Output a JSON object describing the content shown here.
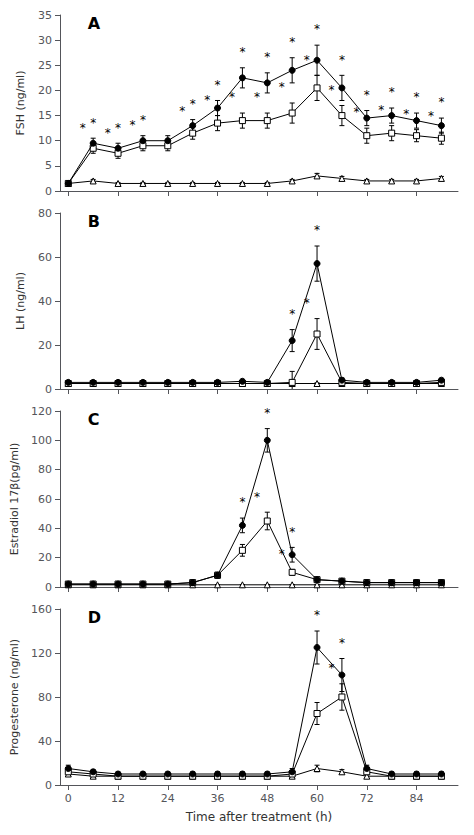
{
  "chart_data": [
    {
      "type": "line",
      "title": "A",
      "ylabel": "FSH (ng/ml)",
      "x": [
        0,
        6,
        12,
        18,
        24,
        30,
        36,
        42,
        48,
        54,
        60,
        66,
        72,
        78,
        84,
        90
      ],
      "xlim": [
        -2,
        94
      ],
      "xticks": [
        0,
        12,
        24,
        36,
        48,
        60,
        72,
        84
      ],
      "ylim": [
        0,
        35
      ],
      "yticks": [
        0,
        5,
        10,
        15,
        20,
        25,
        30,
        35
      ],
      "grid": false,
      "tick_labels": "y",
      "series": [
        {
          "marker": "triangle_open",
          "color": "#000000",
          "values": [
            1.5,
            2.0,
            1.5,
            1.5,
            1.5,
            1.5,
            1.5,
            1.5,
            1.5,
            2.0,
            3.0,
            2.5,
            2.0,
            2.0,
            2.0,
            2.5
          ],
          "errors": [
            0.2,
            0.3,
            0.2,
            0.2,
            0.2,
            0.2,
            0.2,
            0.2,
            0.2,
            0.3,
            0.5,
            0.4,
            0.3,
            0.3,
            0.3,
            0.4
          ]
        },
        {
          "marker": "square_open",
          "color": "#000000",
          "values": [
            1.5,
            8.5,
            7.5,
            9.0,
            9.0,
            11.5,
            13.5,
            14.0,
            14.0,
            15.5,
            20.5,
            15.0,
            11.0,
            11.5,
            11.0,
            10.5
          ],
          "errors": [
            0.3,
            1.0,
            1.0,
            1.0,
            1.0,
            1.2,
            1.5,
            1.5,
            1.5,
            2.0,
            2.5,
            2.0,
            1.5,
            1.5,
            1.2,
            1.2
          ],
          "annotations": [
            {
              "x": 6,
              "text": "*"
            },
            {
              "x": 12,
              "text": "*"
            },
            {
              "x": 18,
              "text": "*"
            },
            {
              "x": 30,
              "text": "*"
            },
            {
              "x": 36,
              "text": "*"
            },
            {
              "x": 42,
              "text": "*"
            },
            {
              "x": 48,
              "text": "*"
            },
            {
              "x": 54,
              "text": "*"
            },
            {
              "x": 60,
              "text": "*"
            },
            {
              "x": 66,
              "text": "*"
            },
            {
              "x": 72,
              "text": "*"
            },
            {
              "x": 78,
              "text": "*"
            },
            {
              "x": 84,
              "text": "*"
            },
            {
              "x": 90,
              "text": "*"
            }
          ]
        },
        {
          "marker": "circle",
          "color": "#000000",
          "values": [
            1.5,
            9.5,
            8.5,
            10.0,
            10.0,
            13.0,
            16.5,
            22.5,
            21.5,
            24.0,
            26.0,
            20.5,
            14.5,
            15.0,
            14.0,
            13.0
          ],
          "errors": [
            0.3,
            1.0,
            1.0,
            1.0,
            1.0,
            1.2,
            1.5,
            2.0,
            2.0,
            2.5,
            3.0,
            2.5,
            1.5,
            1.5,
            1.5,
            1.5
          ],
          "annotations": [
            {
              "x": 6,
              "text": "*"
            },
            {
              "x": 12,
              "text": "*"
            },
            {
              "x": 18,
              "text": "*"
            },
            {
              "x": 30,
              "text": "*"
            },
            {
              "x": 36,
              "text": "*"
            },
            {
              "x": 42,
              "text": "*"
            },
            {
              "x": 48,
              "text": "*"
            },
            {
              "x": 54,
              "text": "*"
            },
            {
              "x": 60,
              "text": "*"
            },
            {
              "x": 66,
              "text": "*"
            },
            {
              "x": 72,
              "text": "*"
            },
            {
              "x": 78,
              "text": "*"
            },
            {
              "x": 84,
              "text": "*"
            },
            {
              "x": 90,
              "text": "*"
            }
          ]
        }
      ]
    },
    {
      "type": "line",
      "title": "B",
      "ylabel": "LH (ng/ml)",
      "x": [
        0,
        6,
        12,
        18,
        24,
        30,
        36,
        42,
        48,
        54,
        60,
        66,
        72,
        78,
        84,
        90
      ],
      "xlim": [
        -2,
        94
      ],
      "xticks": [
        0,
        12,
        24,
        36,
        48,
        60,
        72,
        84
      ],
      "ylim": [
        0,
        80
      ],
      "yticks": [
        0,
        20,
        40,
        60,
        80
      ],
      "grid": false,
      "tick_labels": "y",
      "series": [
        {
          "marker": "triangle_open",
          "color": "#000000",
          "values": [
            2.5,
            2.5,
            2.5,
            2.5,
            2.5,
            2.5,
            2.5,
            2.5,
            2.5,
            2.5,
            2.5,
            2.5,
            2.5,
            2.5,
            2.5,
            2.5
          ],
          "errors": [
            0.3,
            0.3,
            0.3,
            0.3,
            0.3,
            0.3,
            0.3,
            0.3,
            0.3,
            0.3,
            0.3,
            0.3,
            0.3,
            0.3,
            0.3,
            0.3
          ]
        },
        {
          "marker": "square_open",
          "color": "#000000",
          "values": [
            2.5,
            2.5,
            2.5,
            2.5,
            2.5,
            2.5,
            2.5,
            2.5,
            2.5,
            3.0,
            25.0,
            3.0,
            2.5,
            2.5,
            2.5,
            3.0
          ],
          "errors": [
            0.5,
            0.5,
            0.5,
            0.5,
            0.5,
            0.5,
            0.5,
            0.5,
            0.5,
            5.0,
            7.0,
            1.0,
            0.5,
            0.5,
            0.5,
            0.5
          ],
          "annotations": [
            {
              "x": 60,
              "text": "*"
            }
          ]
        },
        {
          "marker": "circle",
          "color": "#000000",
          "values": [
            3.0,
            3.0,
            3.0,
            3.0,
            3.0,
            3.0,
            3.0,
            3.5,
            3.0,
            22.0,
            57.0,
            4.0,
            3.0,
            3.0,
            3.0,
            4.0
          ],
          "errors": [
            0.5,
            0.5,
            0.5,
            0.5,
            0.5,
            0.5,
            0.5,
            0.5,
            0.5,
            5.0,
            8.0,
            1.0,
            0.5,
            0.5,
            0.5,
            0.5
          ],
          "annotations": [
            {
              "x": 54,
              "text": "*"
            },
            {
              "x": 60,
              "text": "*"
            }
          ]
        }
      ]
    },
    {
      "type": "line",
      "title": "C",
      "ylabel": "Estradiol 17β(pg/ml)",
      "x": [
        0,
        6,
        12,
        18,
        24,
        30,
        36,
        42,
        48,
        54,
        60,
        66,
        72,
        78,
        84,
        90
      ],
      "xlim": [
        -2,
        94
      ],
      "xticks": [
        0,
        12,
        24,
        36,
        48,
        60,
        72,
        84
      ],
      "ylim": [
        0,
        120
      ],
      "yticks": [
        0,
        20,
        40,
        60,
        80,
        100,
        120
      ],
      "grid": false,
      "tick_labels": "y",
      "series": [
        {
          "marker": "triangle_open",
          "color": "#000000",
          "values": [
            1.5,
            1.5,
            1.5,
            1.5,
            1.5,
            1.5,
            1.5,
            1.5,
            1.5,
            1.5,
            1.5,
            1.5,
            1.5,
            1.5,
            1.5,
            1.5
          ],
          "errors": [
            0.2,
            0.2,
            0.2,
            0.2,
            0.2,
            0.2,
            0.2,
            0.2,
            0.2,
            0.2,
            0.2,
            0.2,
            0.2,
            0.2,
            0.2,
            0.2
          ]
        },
        {
          "marker": "square_open",
          "color": "#000000",
          "values": [
            2.0,
            2.0,
            2.0,
            2.0,
            2.0,
            3.0,
            8.0,
            25.0,
            45.0,
            10.0,
            5.0,
            4.0,
            3.0,
            3.0,
            3.0,
            3.0
          ],
          "errors": [
            0.5,
            0.5,
            0.5,
            0.5,
            0.5,
            0.5,
            2.0,
            4.0,
            6.0,
            2.0,
            1.0,
            0.5,
            0.5,
            0.5,
            0.5,
            0.5
          ],
          "annotations": [
            {
              "x": 48,
              "text": "*"
            },
            {
              "x": 54,
              "text": "*"
            }
          ]
        },
        {
          "marker": "circle",
          "color": "#000000",
          "values": [
            2.0,
            2.0,
            2.0,
            2.0,
            2.0,
            3.0,
            8.0,
            42.0,
            100.0,
            22.0,
            5.0,
            4.0,
            3.0,
            3.0,
            3.0,
            3.0
          ],
          "errors": [
            0.5,
            0.5,
            0.5,
            0.5,
            0.5,
            0.5,
            2.0,
            5.0,
            8.0,
            5.0,
            1.0,
            0.5,
            0.5,
            0.5,
            0.5,
            0.5
          ],
          "annotations": [
            {
              "x": 42,
              "text": "*"
            },
            {
              "x": 48,
              "text": "*"
            },
            {
              "x": 54,
              "text": "*"
            }
          ]
        }
      ]
    },
    {
      "type": "line",
      "title": "D",
      "ylabel": "Progesterone (ng/ml)",
      "xlabel": "Time after treatment (h)",
      "x": [
        0,
        6,
        12,
        18,
        24,
        30,
        36,
        42,
        48,
        54,
        60,
        66,
        72,
        78,
        84,
        90
      ],
      "xlim": [
        -2,
        94
      ],
      "xticks": [
        0,
        12,
        24,
        36,
        48,
        60,
        72,
        84
      ],
      "ylim": [
        0,
        160
      ],
      "yticks": [
        0,
        40,
        80,
        120,
        160
      ],
      "grid": false,
      "series": [
        {
          "marker": "triangle_open",
          "color": "#000000",
          "values": [
            10.0,
            8.0,
            8.0,
            8.0,
            8.0,
            8.0,
            8.0,
            8.0,
            8.0,
            8.0,
            15.0,
            12.0,
            8.0,
            8.0,
            8.0,
            8.0
          ],
          "errors": [
            2.0,
            1.5,
            1.5,
            1.5,
            1.5,
            1.5,
            1.5,
            1.5,
            1.5,
            1.5,
            3.0,
            2.0,
            1.5,
            1.5,
            1.5,
            1.5
          ]
        },
        {
          "marker": "square_open",
          "color": "#000000",
          "values": [
            12.0,
            10.0,
            8.0,
            8.0,
            8.0,
            8.0,
            8.0,
            8.0,
            8.0,
            10.0,
            65.0,
            80.0,
            12.0,
            8.0,
            8.0,
            8.0
          ],
          "errors": [
            2.0,
            2.0,
            1.5,
            1.5,
            1.5,
            1.5,
            1.5,
            1.5,
            1.5,
            2.0,
            10.0,
            12.0,
            2.0,
            1.5,
            1.5,
            1.5
          ],
          "annotations": [
            {
              "x": 66,
              "text": "*"
            }
          ]
        },
        {
          "marker": "circle",
          "color": "#000000",
          "values": [
            15.0,
            12.0,
            10.0,
            10.0,
            10.0,
            10.0,
            10.0,
            10.0,
            10.0,
            12.0,
            125.0,
            100.0,
            15.0,
            10.0,
            10.0,
            10.0
          ],
          "errors": [
            3.0,
            2.0,
            2.0,
            2.0,
            2.0,
            2.0,
            2.0,
            2.0,
            2.0,
            3.0,
            15.0,
            15.0,
            3.0,
            2.0,
            2.0,
            2.0
          ],
          "annotations": [
            {
              "x": 60,
              "text": "*"
            },
            {
              "x": 66,
              "text": "*"
            }
          ]
        }
      ]
    }
  ]
}
